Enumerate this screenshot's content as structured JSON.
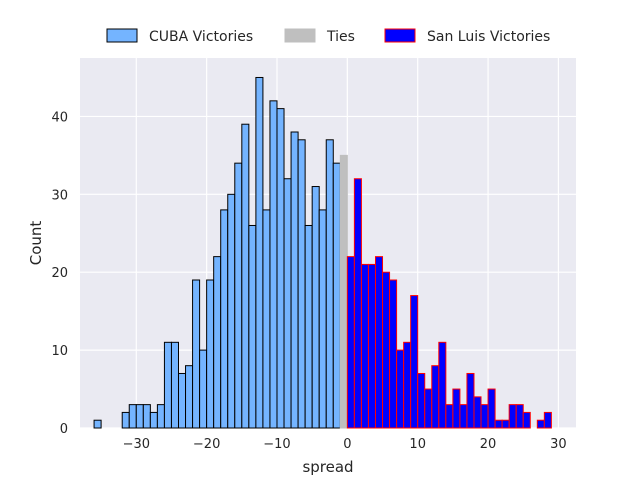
{
  "chart_data": {
    "type": "bar",
    "subtype": "histogram",
    "xlabel": "spread",
    "ylabel": "Count",
    "xlim": [
      -38,
      32.5
    ],
    "ylim": [
      0,
      47.5
    ],
    "xticks": [
      -30,
      -20,
      -10,
      0,
      10,
      20,
      30
    ],
    "yticks": [
      0,
      10,
      20,
      30,
      40
    ],
    "bin_width": 1,
    "grid": true,
    "legend_position": "top-center",
    "background": "#eaeaf2",
    "series": [
      {
        "name": "CUBA Victories",
        "fill": "#74b4ff",
        "edge": "#000000",
        "bins": [
          {
            "x": -36,
            "count": 1
          },
          {
            "x": -35,
            "count": 0
          },
          {
            "x": -34,
            "count": 0
          },
          {
            "x": -33,
            "count": 0
          },
          {
            "x": -32,
            "count": 2
          },
          {
            "x": -31,
            "count": 3
          },
          {
            "x": -30,
            "count": 3
          },
          {
            "x": -29,
            "count": 3
          },
          {
            "x": -28,
            "count": 2
          },
          {
            "x": -27,
            "count": 3
          },
          {
            "x": -26,
            "count": 11
          },
          {
            "x": -25,
            "count": 11
          },
          {
            "x": -24,
            "count": 7
          },
          {
            "x": -23,
            "count": 8
          },
          {
            "x": -22,
            "count": 19
          },
          {
            "x": -21,
            "count": 10
          },
          {
            "x": -20,
            "count": 19
          },
          {
            "x": -19,
            "count": 22
          },
          {
            "x": -18,
            "count": 28
          },
          {
            "x": -17,
            "count": 30
          },
          {
            "x": -16,
            "count": 34
          },
          {
            "x": -15,
            "count": 39
          },
          {
            "x": -14,
            "count": 26
          },
          {
            "x": -13,
            "count": 45
          },
          {
            "x": -12,
            "count": 28
          },
          {
            "x": -11,
            "count": 42
          },
          {
            "x": -10,
            "count": 41
          },
          {
            "x": -9,
            "count": 32
          },
          {
            "x": -8,
            "count": 38
          },
          {
            "x": -7,
            "count": 37
          },
          {
            "x": -6,
            "count": 26
          },
          {
            "x": -5,
            "count": 31
          },
          {
            "x": -4,
            "count": 28
          },
          {
            "x": -3,
            "count": 37
          },
          {
            "x": -2,
            "count": 34
          }
        ]
      },
      {
        "name": "Ties",
        "fill": "#bfbfbf",
        "edge": "#bfbfbf",
        "bins": [
          {
            "x": -1,
            "count": 35
          }
        ]
      },
      {
        "name": "San Luis Victories",
        "fill": "#0000ff",
        "edge": "#ff0000",
        "bins": [
          {
            "x": 0,
            "count": 22
          },
          {
            "x": 1,
            "count": 32
          },
          {
            "x": 2,
            "count": 21
          },
          {
            "x": 3,
            "count": 21
          },
          {
            "x": 4,
            "count": 22
          },
          {
            "x": 5,
            "count": 20
          },
          {
            "x": 6,
            "count": 19
          },
          {
            "x": 7,
            "count": 10
          },
          {
            "x": 8,
            "count": 11
          },
          {
            "x": 9,
            "count": 17
          },
          {
            "x": 10,
            "count": 7
          },
          {
            "x": 11,
            "count": 5
          },
          {
            "x": 12,
            "count": 8
          },
          {
            "x": 13,
            "count": 11
          },
          {
            "x": 14,
            "count": 3
          },
          {
            "x": 15,
            "count": 5
          },
          {
            "x": 16,
            "count": 3
          },
          {
            "x": 17,
            "count": 7
          },
          {
            "x": 18,
            "count": 4
          },
          {
            "x": 19,
            "count": 3
          },
          {
            "x": 20,
            "count": 5
          },
          {
            "x": 21,
            "count": 1
          },
          {
            "x": 22,
            "count": 1
          },
          {
            "x": 23,
            "count": 3
          },
          {
            "x": 24,
            "count": 3
          },
          {
            "x": 25,
            "count": 2
          },
          {
            "x": 26,
            "count": 0
          },
          {
            "x": 27,
            "count": 1
          },
          {
            "x": 28,
            "count": 2
          }
        ]
      }
    ]
  }
}
